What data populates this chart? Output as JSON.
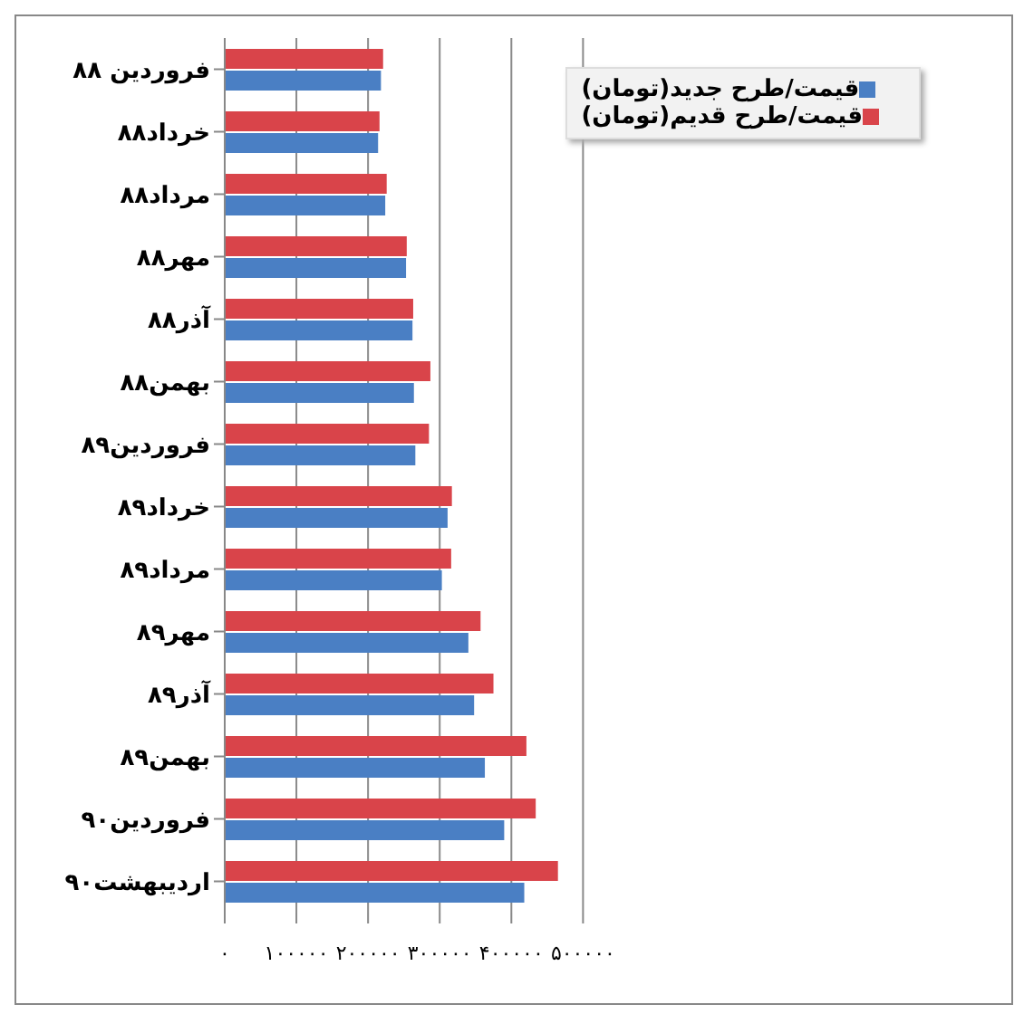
{
  "chart_data": {
    "type": "bar",
    "orientation": "horizontal",
    "categories": [
      "فروردین ۸۸",
      "خرداد۸۸",
      "مرداد۸۸",
      "مهر۸۸",
      "آذر۸۸",
      "بهمن۸۸",
      "فروردین۸۹",
      "خرداد۸۹",
      "مرداد۸۹",
      "مهر۸۹",
      "آذر۸۹",
      "بهمن۸۹",
      "فروردین۹۰",
      "اردیبهشت۹۰"
    ],
    "series": [
      {
        "name": "قیمت/طرح قدیم(تومان)",
        "color": "#d9444a",
        "values": [
          221000,
          216000,
          226000,
          254000,
          263000,
          287000,
          285000,
          317000,
          316000,
          357000,
          375000,
          421000,
          434000,
          465000
        ]
      },
      {
        "name": "قیمت/طرح جدید(تومان)",
        "color": "#4a7fc4",
        "values": [
          218000,
          214000,
          224000,
          253000,
          262000,
          264000,
          266000,
          311000,
          303000,
          340000,
          348000,
          363000,
          390000,
          418000
        ]
      }
    ],
    "xlim": [
      0,
      500000
    ],
    "xticks": [
      {
        "value": 0,
        "label": "۰"
      },
      {
        "value": 100000,
        "label": "۱۰۰۰۰۰"
      },
      {
        "value": 200000,
        "label": "۲۰۰۰۰۰"
      },
      {
        "value": 300000,
        "label": "۳۰۰۰۰۰"
      },
      {
        "value": 400000,
        "label": "۴۰۰۰۰۰"
      },
      {
        "value": 500000,
        "label": "۵۰۰۰۰۰"
      }
    ],
    "grid": "x",
    "legend": "top right"
  }
}
